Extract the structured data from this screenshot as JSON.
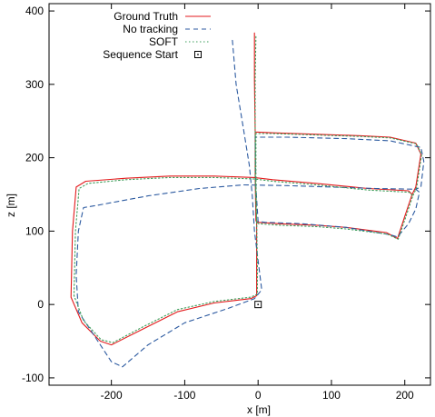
{
  "chart_data": {
    "type": "line",
    "title": "",
    "xlabel": "x [m]",
    "ylabel": "z [m]",
    "xlim": [
      -285,
      235
    ],
    "ylim": [
      -110,
      410
    ],
    "xticks": [
      -200,
      -100,
      0,
      100,
      200
    ],
    "yticks": [
      -100,
      0,
      100,
      200,
      300,
      400
    ],
    "grid": false,
    "legend_position": "top-left",
    "series": [
      {
        "name": "Ground Truth",
        "color": "#e31a1c",
        "dash": "solid",
        "points": [
          [
            -5,
            370
          ],
          [
            -5,
            305
          ],
          [
            -4,
            235
          ],
          [
            -4,
            175
          ],
          [
            -3,
            135
          ],
          [
            -2,
            112
          ],
          [
            -2,
            60
          ],
          [
            -2,
            12
          ],
          [
            -10,
            8
          ],
          [
            -60,
            2
          ],
          [
            -110,
            -10
          ],
          [
            -160,
            -35
          ],
          [
            -200,
            -55
          ],
          [
            -215,
            -50
          ],
          [
            -240,
            -25
          ],
          [
            -255,
            10
          ],
          [
            -253,
            100
          ],
          [
            -248,
            160
          ],
          [
            -235,
            168
          ],
          [
            -180,
            172
          ],
          [
            -120,
            175
          ],
          [
            -60,
            175
          ],
          [
            -5,
            173
          ],
          [
            20,
            170
          ],
          [
            80,
            165
          ],
          [
            150,
            158
          ],
          [
            205,
            155
          ],
          [
            210,
            150
          ],
          [
            200,
            120
          ],
          [
            190,
            90
          ],
          [
            175,
            98
          ],
          [
            120,
            105
          ],
          [
            80,
            108
          ],
          [
            30,
            110
          ],
          [
            0,
            112
          ],
          [
            -3,
            114
          ],
          [
            -4,
            175
          ],
          [
            -4,
            235
          ],
          [
            20,
            234
          ],
          [
            80,
            232
          ],
          [
            140,
            230
          ],
          [
            180,
            228
          ],
          [
            215,
            220
          ],
          [
            222,
            205
          ],
          [
            215,
            160
          ],
          [
            210,
            150
          ]
        ]
      },
      {
        "name": "No tracking",
        "color": "#2c5aa0",
        "dash": "5,4",
        "points": [
          [
            -35,
            360
          ],
          [
            -30,
            300
          ],
          [
            -20,
            240
          ],
          [
            -12,
            190
          ],
          [
            -8,
            150
          ],
          [
            -5,
            100
          ],
          [
            0,
            60
          ],
          [
            5,
            20
          ],
          [
            -5,
            8
          ],
          [
            -40,
            -5
          ],
          [
            -100,
            -25
          ],
          [
            -150,
            -55
          ],
          [
            -185,
            -85
          ],
          [
            -200,
            -78
          ],
          [
            -225,
            -40
          ],
          [
            -245,
            -10
          ],
          [
            -248,
            40
          ],
          [
            -245,
            100
          ],
          [
            -238,
            132
          ],
          [
            -220,
            135
          ],
          [
            -150,
            148
          ],
          [
            -80,
            158
          ],
          [
            -20,
            163
          ],
          [
            40,
            162
          ],
          [
            100,
            160
          ],
          [
            160,
            158
          ],
          [
            215,
            157
          ],
          [
            220,
            153
          ],
          [
            215,
            130
          ],
          [
            205,
            110
          ],
          [
            190,
            92
          ],
          [
            180,
            95
          ],
          [
            120,
            105
          ],
          [
            60,
            110
          ],
          [
            10,
            112
          ],
          [
            0,
            113
          ],
          [
            -3,
            160
          ],
          [
            -4,
            228
          ],
          [
            40,
            228
          ],
          [
            120,
            226
          ],
          [
            180,
            223
          ],
          [
            222,
            214
          ],
          [
            226,
            195
          ],
          [
            222,
            160
          ],
          [
            215,
            157
          ]
        ]
      },
      {
        "name": "SOFT",
        "color": "#3e9e5b",
        "dash": "1.5,2.5",
        "points": [
          [
            -3,
            365
          ],
          [
            -4,
            305
          ],
          [
            -4,
            236
          ],
          [
            -4,
            176
          ],
          [
            -3,
            136
          ],
          [
            -2,
            113
          ],
          [
            -1,
            60
          ],
          [
            -1,
            14
          ],
          [
            -10,
            10
          ],
          [
            -60,
            4
          ],
          [
            -110,
            -7
          ],
          [
            -160,
            -32
          ],
          [
            -198,
            -52
          ],
          [
            -214,
            -48
          ],
          [
            -238,
            -22
          ],
          [
            -251,
            12
          ],
          [
            -249,
            100
          ],
          [
            -244,
            158
          ],
          [
            -232,
            165
          ],
          [
            -180,
            170
          ],
          [
            -120,
            173
          ],
          [
            -60,
            173
          ],
          [
            -5,
            171
          ],
          [
            20,
            168
          ],
          [
            80,
            163
          ],
          [
            150,
            156
          ],
          [
            206,
            153
          ],
          [
            211,
            148
          ],
          [
            201,
            118
          ],
          [
            191,
            89
          ],
          [
            176,
            96
          ],
          [
            120,
            103
          ],
          [
            80,
            106
          ],
          [
            30,
            108
          ],
          [
            1,
            110
          ],
          [
            -2,
            112
          ],
          [
            -3,
            174
          ],
          [
            -3,
            233
          ],
          [
            20,
            233
          ],
          [
            80,
            231
          ],
          [
            140,
            229
          ],
          [
            180,
            227
          ],
          [
            216,
            219
          ],
          [
            223,
            204
          ],
          [
            216,
            159
          ],
          [
            211,
            148
          ]
        ]
      },
      {
        "name": "Sequence Start",
        "color": "#000000",
        "marker": "square-dot",
        "points": [
          [
            0,
            0
          ]
        ]
      }
    ]
  }
}
